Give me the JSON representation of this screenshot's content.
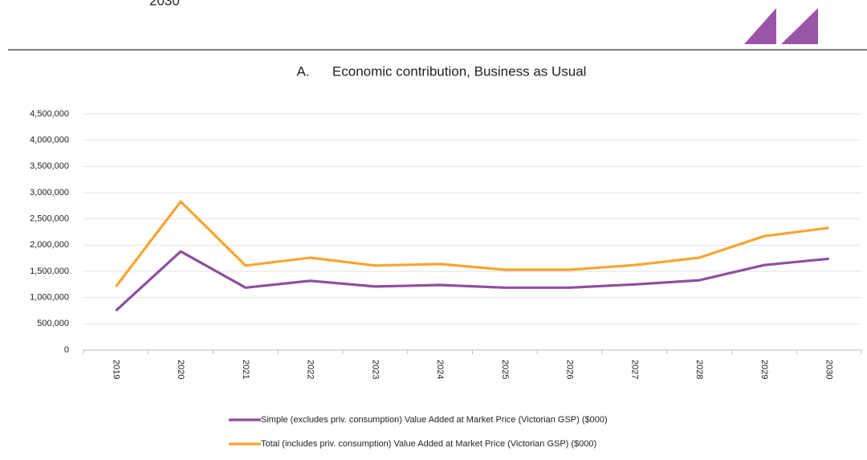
{
  "page": {
    "header_text": "2030"
  },
  "chart_data": {
    "type": "line",
    "title": "A.      Economic contribution, Business as Usual",
    "categories": [
      "2019",
      "2020",
      "2021",
      "2022",
      "2023",
      "2024",
      "2025",
      "2026",
      "2027",
      "2028",
      "2029",
      "2030"
    ],
    "series": [
      {
        "name": "Simple (excludes priv. consumption) Value Added at Market Price (Victorian GSP) ($000)",
        "color": "#8e4fa0",
        "values": [
          750000,
          1880000,
          1190000,
          1320000,
          1210000,
          1240000,
          1190000,
          1190000,
          1250000,
          1330000,
          1620000,
          1740000
        ]
      },
      {
        "name": "Total (includes priv. consumption) Value Added at Market Price (Victorian GSP) ($000)",
        "color": "#f7a531",
        "values": [
          1210000,
          2830000,
          1610000,
          1760000,
          1610000,
          1640000,
          1530000,
          1530000,
          1620000,
          1760000,
          2170000,
          2330000
        ]
      }
    ],
    "ylim": [
      0,
      4500000
    ],
    "yticks": [
      0,
      {
        "value": 500000,
        "label": "500,000"
      },
      {
        "value": 1000000,
        "label": "1,000,000"
      },
      {
        "value": 1500000,
        "label": "1,500,000"
      },
      {
        "value": 2000000,
        "label": "2,000,000"
      },
      {
        "value": 2500000,
        "label": "2,500,000"
      },
      {
        "value": 3000000,
        "label": "3,000,000"
      },
      {
        "value": 3500000,
        "label": "3,500,000"
      },
      {
        "value": 4000000,
        "label": "4,000,000"
      },
      {
        "value": 4500000,
        "label": "4,500,000"
      }
    ],
    "grid": true,
    "legend": "bottom"
  }
}
